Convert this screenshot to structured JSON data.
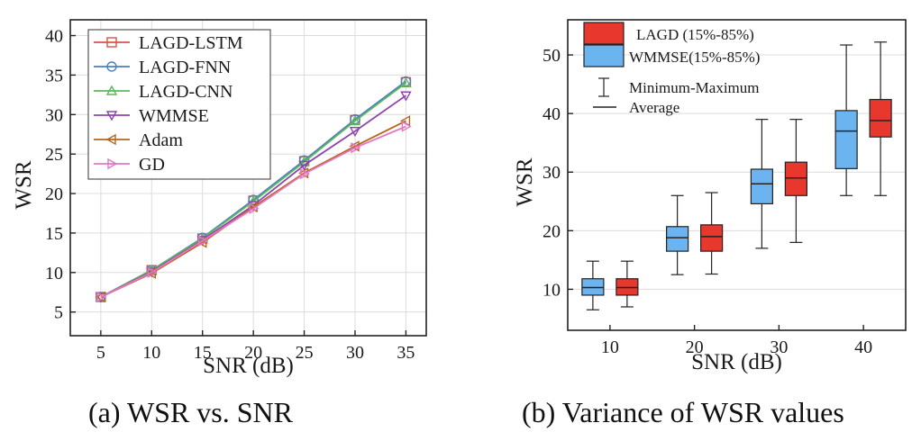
{
  "chart_data": [
    {
      "type": "line",
      "caption": "(a) WSR vs. SNR",
      "xlabel": "SNR (dB)",
      "ylabel": "WSR",
      "xlim": [
        2,
        37
      ],
      "ylim": [
        2,
        42
      ],
      "xticks": [
        5,
        10,
        15,
        20,
        25,
        30,
        35
      ],
      "yticks": [
        5,
        10,
        15,
        20,
        25,
        30,
        35,
        40
      ],
      "grid": true,
      "legend_position": "top-left",
      "x": [
        5,
        10,
        15,
        20,
        25,
        30,
        35
      ],
      "series": [
        {
          "name": "LAGD-LSTM",
          "marker": "square",
          "color": "#d9534f",
          "values": [
            6.9,
            10.3,
            14.3,
            19.1,
            24.1,
            29.3,
            34.1
          ]
        },
        {
          "name": "LAGD-FNN",
          "marker": "circle",
          "color": "#4a7fc1",
          "values": [
            6.9,
            10.3,
            14.4,
            19.2,
            24.2,
            29.4,
            34.2
          ]
        },
        {
          "name": "LAGD-CNN",
          "marker": "triangle-up",
          "color": "#5cb85c",
          "values": [
            6.9,
            10.3,
            14.3,
            19.0,
            24.0,
            29.2,
            34.0
          ]
        },
        {
          "name": "WMMSE",
          "marker": "triangle-down",
          "color": "#8e44ad",
          "values": [
            6.9,
            10.1,
            14.1,
            18.5,
            23.6,
            27.9,
            32.4
          ]
        },
        {
          "name": "Adam",
          "marker": "triangle-left",
          "color": "#b5651d",
          "values": [
            6.9,
            9.9,
            13.8,
            18.3,
            22.6,
            26.0,
            29.2
          ]
        },
        {
          "name": "GD",
          "marker": "triangle-right",
          "color": "#e377c2",
          "values": [
            6.9,
            10.0,
            14.0,
            18.1,
            22.5,
            25.8,
            28.5
          ]
        }
      ]
    },
    {
      "type": "box",
      "caption": "(b) Variance of WSR values",
      "xlabel": "SNR (dB)",
      "ylabel": "WSR",
      "ylim": [
        3,
        56
      ],
      "yticks": [
        10,
        20,
        30,
        40,
        50
      ],
      "categories": [
        "10",
        "20",
        "30",
        "40"
      ],
      "grid": true,
      "legend_position": "top-left",
      "legend": {
        "lagd": "LAGD  (15%-85%)",
        "wmmse": "WMMSE(15%-85%)",
        "minmax": "Minimum-Maximum",
        "average": "Average"
      },
      "series": [
        {
          "name": "WMMSE",
          "color": "#6cb4f0",
          "boxes": [
            {
              "min": 6.5,
              "q_low": 9.0,
              "mean": 10.3,
              "q_high": 11.8,
              "max": 14.8
            },
            {
              "min": 12.5,
              "q_low": 16.5,
              "mean": 18.8,
              "q_high": 20.7,
              "max": 26.0
            },
            {
              "min": 17.0,
              "q_low": 24.6,
              "mean": 28.0,
              "q_high": 30.5,
              "max": 39.0
            },
            {
              "min": 26.0,
              "q_low": 30.6,
              "mean": 37.0,
              "q_high": 40.5,
              "max": 51.7
            }
          ]
        },
        {
          "name": "LAGD",
          "color": "#e8382e",
          "boxes": [
            {
              "min": 7.0,
              "q_low": 9.0,
              "mean": 10.3,
              "q_high": 11.8,
              "max": 14.8
            },
            {
              "min": 12.6,
              "q_low": 16.5,
              "mean": 19.0,
              "q_high": 21.0,
              "max": 26.5
            },
            {
              "min": 18.0,
              "q_low": 26.0,
              "mean": 29.0,
              "q_high": 31.7,
              "max": 39.0
            },
            {
              "min": 26.0,
              "q_low": 36.0,
              "mean": 38.8,
              "q_high": 42.4,
              "max": 52.2
            }
          ]
        }
      ]
    }
  ]
}
